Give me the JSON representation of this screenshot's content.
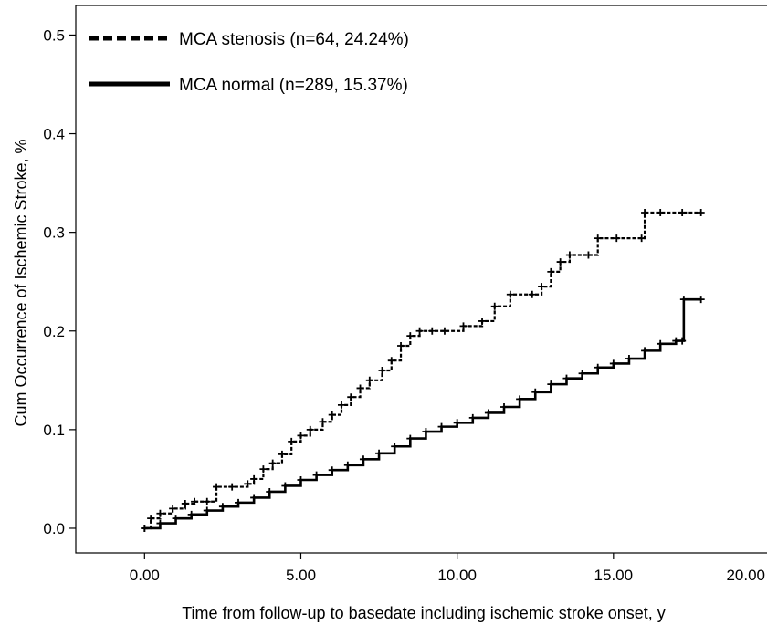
{
  "chart_data": {
    "type": "line",
    "title": "",
    "xlabel": "Time from follow-up  to basedate including ischemic stroke onset, y",
    "ylabel": "Cum Occurrence of Ischemic Stroke, %",
    "xlim": [
      -2.2,
      20.0
    ],
    "ylim": [
      -0.025,
      0.53
    ],
    "xticks": [
      0,
      5,
      10,
      15,
      20
    ],
    "xtick_labels": [
      "0.00",
      "5.00",
      "10.00",
      "15.00",
      "20.00"
    ],
    "yticks": [
      0.0,
      0.1,
      0.2,
      0.3,
      0.4,
      0.5
    ],
    "ytick_labels": [
      "0.0",
      "0.1",
      "0.2",
      "0.3",
      "0.4",
      "0.5"
    ],
    "grid": false,
    "legend_position": "top-left",
    "series": [
      {
        "name": "MCA stenosis (n=64, 24.24%)",
        "style": "dashed",
        "color": "#000000",
        "points": [
          [
            0.0,
            0.0
          ],
          [
            0.2,
            0.01
          ],
          [
            0.5,
            0.015
          ],
          [
            0.9,
            0.02
          ],
          [
            1.3,
            0.025
          ],
          [
            1.6,
            0.027
          ],
          [
            2.0,
            0.027
          ],
          [
            2.3,
            0.042
          ],
          [
            2.8,
            0.042
          ],
          [
            3.3,
            0.045
          ],
          [
            3.5,
            0.05
          ],
          [
            3.8,
            0.06
          ],
          [
            4.1,
            0.066
          ],
          [
            4.4,
            0.075
          ],
          [
            4.7,
            0.088
          ],
          [
            5.0,
            0.094
          ],
          [
            5.3,
            0.1
          ],
          [
            5.7,
            0.108
          ],
          [
            6.0,
            0.115
          ],
          [
            6.3,
            0.125
          ],
          [
            6.6,
            0.133
          ],
          [
            6.9,
            0.142
          ],
          [
            7.2,
            0.15
          ],
          [
            7.6,
            0.16
          ],
          [
            7.9,
            0.17
          ],
          [
            8.2,
            0.185
          ],
          [
            8.5,
            0.195
          ],
          [
            8.8,
            0.2
          ],
          [
            9.2,
            0.2
          ],
          [
            9.6,
            0.2
          ],
          [
            10.2,
            0.205
          ],
          [
            10.8,
            0.21
          ],
          [
            11.2,
            0.225
          ],
          [
            11.7,
            0.237
          ],
          [
            12.4,
            0.237
          ],
          [
            12.7,
            0.245
          ],
          [
            13.0,
            0.26
          ],
          [
            13.3,
            0.27
          ],
          [
            13.6,
            0.277
          ],
          [
            14.2,
            0.277
          ],
          [
            14.5,
            0.294
          ],
          [
            15.1,
            0.294
          ],
          [
            15.9,
            0.294
          ],
          [
            16.0,
            0.32
          ],
          [
            16.5,
            0.32
          ],
          [
            17.2,
            0.32
          ],
          [
            17.8,
            0.32
          ]
        ]
      },
      {
        "name": "MCA normal (n=289, 15.37%)",
        "style": "solid",
        "color": "#000000",
        "points": [
          [
            0.0,
            0.0
          ],
          [
            0.5,
            0.005
          ],
          [
            1.0,
            0.01
          ],
          [
            1.5,
            0.014
          ],
          [
            2.0,
            0.018
          ],
          [
            2.5,
            0.022
          ],
          [
            3.0,
            0.026
          ],
          [
            3.5,
            0.031
          ],
          [
            4.0,
            0.037
          ],
          [
            4.5,
            0.043
          ],
          [
            5.0,
            0.049
          ],
          [
            5.5,
            0.054
          ],
          [
            6.0,
            0.059
          ],
          [
            6.5,
            0.064
          ],
          [
            7.0,
            0.07
          ],
          [
            7.5,
            0.076
          ],
          [
            8.0,
            0.083
          ],
          [
            8.5,
            0.091
          ],
          [
            9.0,
            0.098
          ],
          [
            9.5,
            0.103
          ],
          [
            10.0,
            0.107
          ],
          [
            10.5,
            0.112
          ],
          [
            11.0,
            0.117
          ],
          [
            11.5,
            0.123
          ],
          [
            12.0,
            0.131
          ],
          [
            12.5,
            0.138
          ],
          [
            13.0,
            0.146
          ],
          [
            13.5,
            0.152
          ],
          [
            14.0,
            0.157
          ],
          [
            14.5,
            0.163
          ],
          [
            15.0,
            0.167
          ],
          [
            15.5,
            0.172
          ],
          [
            16.0,
            0.18
          ],
          [
            16.5,
            0.187
          ],
          [
            17.0,
            0.19
          ],
          [
            17.2,
            0.19
          ],
          [
            17.25,
            0.232
          ],
          [
            17.8,
            0.232
          ]
        ]
      }
    ]
  }
}
